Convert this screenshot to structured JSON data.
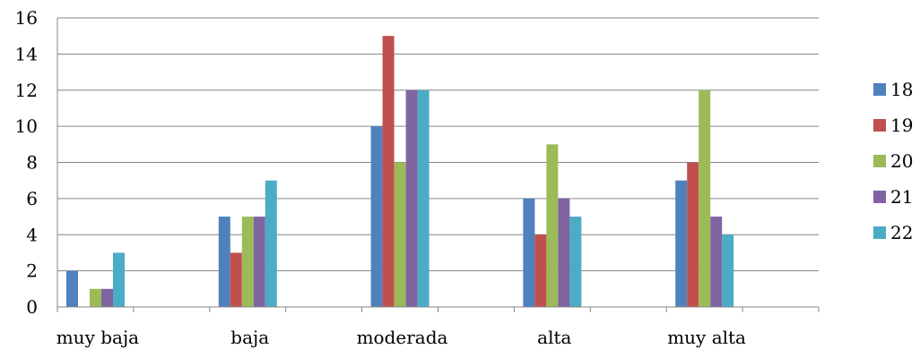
{
  "chart_data": {
    "type": "bar",
    "title": "",
    "xlabel": "",
    "ylabel": "",
    "categories": [
      "muy baja",
      "baja",
      "moderada",
      "alta",
      "muy alta"
    ],
    "series": [
      {
        "name": "18",
        "color": "#4F81BD",
        "values": [
          2,
          5,
          10,
          6,
          7
        ]
      },
      {
        "name": "19",
        "color": "#C0504D",
        "values": [
          0,
          3,
          15,
          4,
          8
        ]
      },
      {
        "name": "20",
        "color": "#9BBB59",
        "values": [
          1,
          5,
          8,
          9,
          12
        ]
      },
      {
        "name": "21",
        "color": "#8064A2",
        "values": [
          1,
          5,
          12,
          6,
          5
        ]
      },
      {
        "name": "22",
        "color": "#4BACC6",
        "values": [
          3,
          7,
          12,
          5,
          4
        ]
      }
    ],
    "ylim": [
      0,
      16
    ],
    "yticks": [
      "0",
      "2",
      "4",
      "6",
      "8",
      "10",
      "12",
      "14",
      "16"
    ],
    "grid": true,
    "legend_position": "right"
  }
}
